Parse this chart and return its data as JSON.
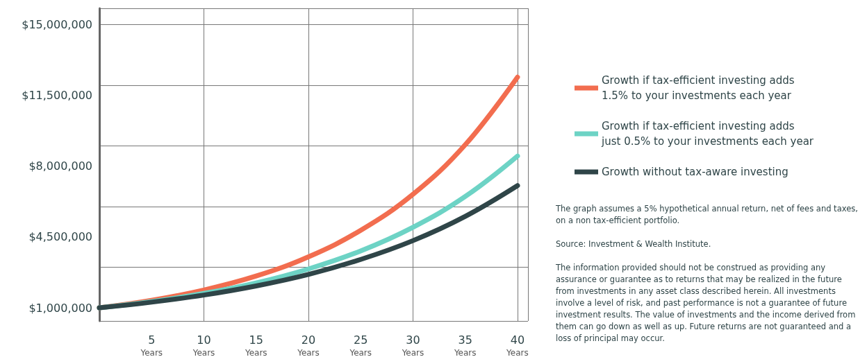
{
  "chart_data": {
    "type": "line",
    "x": [
      0,
      5,
      10,
      15,
      20,
      25,
      30,
      35,
      40
    ],
    "series": [
      {
        "name": "Growth if tax-efficient investing adds 1.5% to your investments each year",
        "color": "#f26d4f",
        "values": [
          1000000,
          1370000,
          1880000,
          2570000,
          3520000,
          4830000,
          6610000,
          9060000,
          12400000
        ]
      },
      {
        "name": "Growth if tax-efficient investing adds just 0.5% to your investments each year",
        "color": "#6dd3c5",
        "values": [
          1000000,
          1310000,
          1710000,
          2230000,
          2920000,
          3810000,
          4980000,
          6500000,
          8500000
        ]
      },
      {
        "name": "Growth without tax-aware investing",
        "color": "#2f4548",
        "values": [
          1000000,
          1280000,
          1630000,
          2080000,
          2650000,
          3390000,
          4320000,
          5520000,
          7040000
        ]
      }
    ],
    "xlim": [
      0,
      41
    ],
    "xticks": [
      {
        "value": 5,
        "label": "5 Years"
      },
      {
        "value": 10,
        "label": "10 Years"
      },
      {
        "value": 15,
        "label": "15 Years"
      },
      {
        "value": 20,
        "label": "20 Years"
      },
      {
        "value": 25,
        "label": "25 Years"
      },
      {
        "value": 30,
        "label": "30 Years"
      },
      {
        "value": 35,
        "label": "35 Years"
      },
      {
        "value": 40,
        "label": "40 Years"
      }
    ],
    "ylim": [
      350000,
      15800000
    ],
    "yticks": [
      {
        "value": 1000000,
        "label": "$1,000,000"
      },
      {
        "value": 4500000,
        "label": "$4,500,000"
      },
      {
        "value": 8000000,
        "label": "$8,000,000"
      },
      {
        "value": 11500000,
        "label": "$11,500,000"
      },
      {
        "value": 15000000,
        "label": "$15,000,000"
      }
    ],
    "grid": true,
    "legend": "right",
    "marker": "none",
    "line_style": "solid",
    "annotations": [
      "The graph assumes a 5% hypothetical annual return, net of fees and taxes, on a non tax-efficient portfolio.",
      "Source: Investment & Wealth Institute.",
      "The information provided should not be construed as providing any assurance or guarantee as to returns that may be realized in the future from investments in any asset class described herein. All investments involve a level of risk, and past performance is not a guarantee of future investment results. The value of investments and the income derived from them can go down as well as up. Future returns are not guaranteed and a loss of principal may occur."
    ]
  }
}
